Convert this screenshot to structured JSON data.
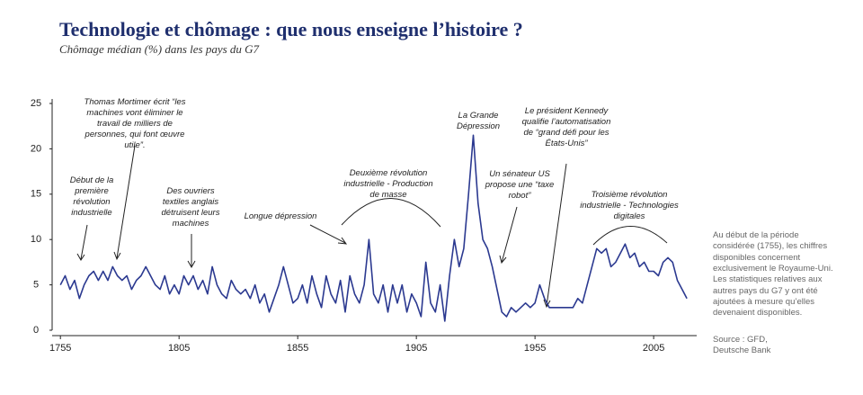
{
  "chart_data": {
    "type": "line",
    "title": "Technologie et chômage : que nous enseigne l’histoire ?",
    "subtitle": "Chômage médian (%) dans les pays du G7",
    "x": [
      1755,
      1757,
      1759,
      1761,
      1763,
      1765,
      1767,
      1769,
      1771,
      1773,
      1775,
      1777,
      1779,
      1781,
      1783,
      1785,
      1787,
      1789,
      1791,
      1793,
      1795,
      1797,
      1799,
      1801,
      1803,
      1805,
      1807,
      1809,
      1811,
      1813,
      1815,
      1817,
      1819,
      1821,
      1823,
      1825,
      1827,
      1829,
      1831,
      1833,
      1835,
      1837,
      1839,
      1841,
      1843,
      1845,
      1847,
      1849,
      1851,
      1853,
      1855,
      1857,
      1859,
      1861,
      1863,
      1865,
      1867,
      1869,
      1871,
      1873,
      1875,
      1877,
      1879,
      1881,
      1883,
      1885,
      1887,
      1889,
      1891,
      1893,
      1895,
      1897,
      1899,
      1901,
      1903,
      1905,
      1907,
      1909,
      1911,
      1913,
      1915,
      1917,
      1919,
      1921,
      1923,
      1925,
      1927,
      1929,
      1931,
      1933,
      1935,
      1937,
      1939,
      1941,
      1943,
      1945,
      1947,
      1949,
      1951,
      1953,
      1955,
      1957,
      1959,
      1961,
      1963,
      1965,
      1967,
      1969,
      1971,
      1973,
      1975,
      1977,
      1979,
      1981,
      1983,
      1985,
      1987,
      1989,
      1991,
      1993,
      1995,
      1997,
      1999,
      2001,
      2003,
      2005,
      2007,
      2009,
      2011,
      2013,
      2015,
      2017,
      2019
    ],
    "values": [
      5,
      6,
      4.5,
      5.5,
      3.5,
      5,
      6,
      6.5,
      5.5,
      6.5,
      5.5,
      7,
      6,
      5.5,
      6,
      4.5,
      5.5,
      6,
      7,
      6,
      5,
      4.5,
      6,
      4,
      5,
      4,
      6,
      5,
      6,
      4.5,
      5.5,
      4,
      7,
      5,
      4,
      3.5,
      5.5,
      4.5,
      4,
      4.5,
      3.5,
      5,
      3,
      4,
      2,
      3.5,
      5,
      7,
      5,
      3,
      3.5,
      5,
      3,
      6,
      4,
      2.5,
      6,
      4,
      3,
      5.5,
      2,
      6,
      4,
      3,
      5,
      10,
      4,
      3,
      5,
      2,
      5,
      3,
      5,
      2,
      4,
      3,
      1.5,
      7.5,
      3,
      2,
      5,
      1,
      6,
      10,
      7,
      9,
      15,
      21.5,
      14,
      10,
      9,
      7,
      4.5,
      2,
      1.5,
      2.5,
      2,
      2.5,
      3,
      2.5,
      3,
      5,
      3.5,
      2.5,
      2.5,
      2.5,
      2.5,
      2.5,
      2.5,
      3.5,
      3,
      5,
      7,
      9,
      8.5,
      9,
      7,
      7.5,
      8.5,
      9.5,
      8,
      8.5,
      7,
      7.5,
      6.5,
      6.5,
      6,
      7.5,
      8,
      7.5,
      5.5,
      4.5,
      3.5
    ],
    "color": "#2b3990",
    "xlim": [
      1750,
      2022
    ],
    "xticks": [
      1755,
      1805,
      1855,
      1905,
      1955,
      2005
    ],
    "ylim": [
      0,
      25
    ],
    "yticks": [
      0,
      5,
      10,
      15,
      20,
      25
    ],
    "grid": false,
    "annotations": [
      "Début de la première révolution industrielle",
      "Thomas Mortimer écrit “les machines vont éliminer le travail de milliers de personnes, qui font œuvre utile”.",
      "Des ouvriers textiles anglais détruisent leurs machines",
      "Longue dépression",
      "Deuxième révolution industrielle - Production de masse",
      "La Grande Dépression",
      "Un sénateur US propose une “taxe robot”",
      "Le président Kennedy qualifie l’automatisation de “grand défi pour les États-Unis”",
      "Troisième révolution industrielle - Technologies digitales"
    ],
    "note": "Au début de la période considérée (1755), les chiffres disponibles concernent exclusivement le Royaume-Uni. Les statistiques relatives aux autres pays du G7 y ont été ajoutées à mesure qu’elles devenaient disponibles.",
    "source": "Source : GFD, Deutsche Bank"
  }
}
